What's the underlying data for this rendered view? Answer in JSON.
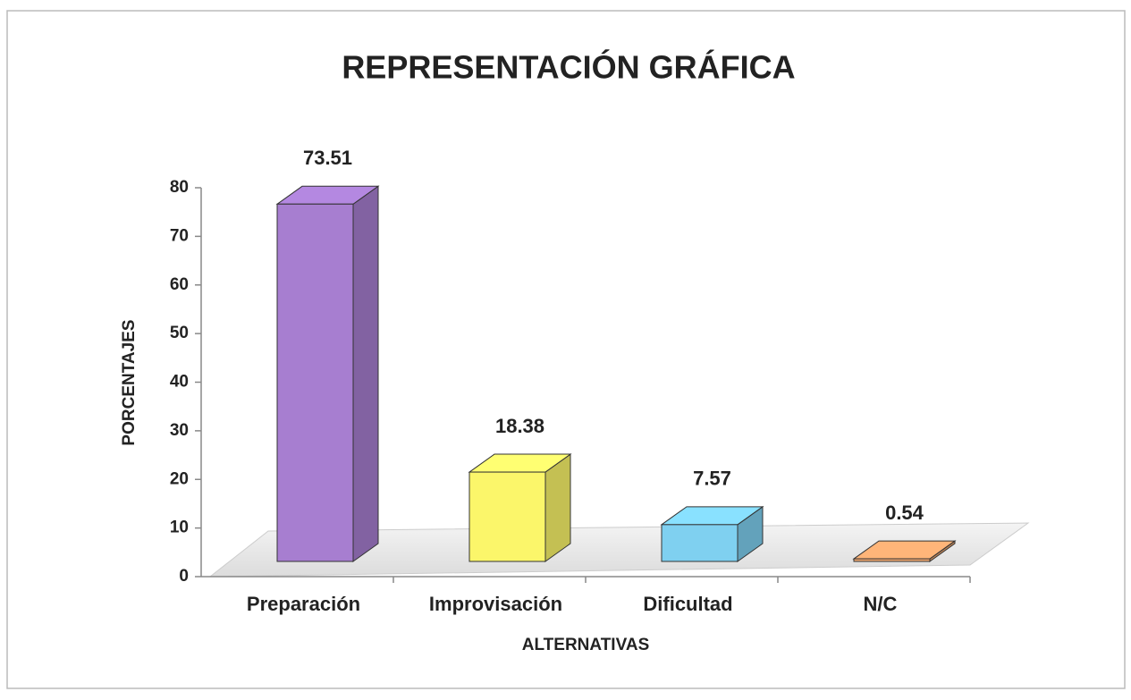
{
  "chart_data": {
    "type": "bar3d",
    "title": "REPRESENTACIÓN GRÁFICA",
    "x_label": "ALTERNATIVAS",
    "y_label": "PORCENTAJES",
    "categories": [
      "Preparación",
      "Improvisación",
      "Dificultad",
      "N/C"
    ],
    "values": [
      73.51,
      18.38,
      7.57,
      0.54
    ],
    "colors": [
      "#a77ed0",
      "#fbf66a",
      "#7fd0f0",
      "#f0a870"
    ],
    "ylim": [
      0,
      80
    ],
    "yticks": [
      0,
      10,
      20,
      30,
      40,
      50,
      60,
      70,
      80
    ]
  }
}
